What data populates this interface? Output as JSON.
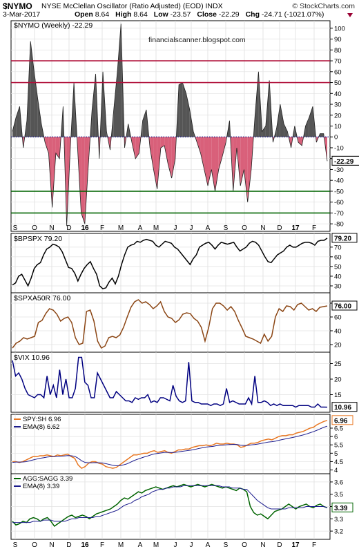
{
  "header": {
    "symbol": "$NYMO",
    "description": "NYSE McClellan Oscillator (Ratio Adjusted) (EOD)  INDX",
    "brand": "© StockCharts.com",
    "date": "3-Mar-2017",
    "open_label": "Open",
    "open_value": "8.64",
    "high_label": "High",
    "high_value": "8.64",
    "low_label": "Low",
    "low_value": "-23.57",
    "close_label": "Close",
    "close_value": "-22.29",
    "chg_label": "Chg",
    "chg_value": "-24.71 (-1021.07%)",
    "chg_color": "#990033"
  },
  "watermark": "financialscanner.blogspot.com",
  "x_axis": {
    "labels": [
      "S",
      "O",
      "N",
      "D",
      "16",
      "F",
      "M",
      "A",
      "M",
      "J",
      "J",
      "A",
      "S",
      "O",
      "N",
      "D",
      "17",
      "F"
    ],
    "bold": [
      "16",
      "17"
    ]
  },
  "chart_data": [
    {
      "type": "area",
      "panel": "nymo",
      "title": "$NYMO (Weekly) -22.29",
      "ylim": [
        -85,
        105
      ],
      "yticks": [
        100,
        90,
        80,
        70,
        60,
        50,
        40,
        30,
        20,
        10,
        0,
        -10,
        -20,
        -30,
        -40,
        -50,
        -60,
        -70,
        -80
      ],
      "reference_lines": [
        {
          "value": 70,
          "color": "#b0103a"
        },
        {
          "value": 50,
          "color": "#b0103a"
        },
        {
          "value": 0,
          "color": "#1a1a8c",
          "style": "dotted"
        },
        {
          "value": -50,
          "color": "#006400"
        },
        {
          "value": -70,
          "color": "#006400"
        }
      ],
      "last_value_label": "-22.29",
      "positive_color": "#555555",
      "negative_color": "#d9607a",
      "values": [
        5,
        18,
        28,
        -10,
        15,
        88,
        60,
        35,
        12,
        -5,
        -15,
        -65,
        -15,
        -20,
        28,
        -82,
        -10,
        50,
        -10,
        -70,
        -80,
        -25,
        25,
        58,
        -20,
        60,
        5,
        -12,
        25,
        60,
        104,
        -10,
        12,
        -5,
        -20,
        -15,
        15,
        25,
        -10,
        -30,
        -48,
        -10,
        -8,
        -25,
        -38,
        -20,
        48,
        50,
        40,
        25,
        5,
        -5,
        -15,
        -30,
        -45,
        -30,
        -50,
        -30,
        -18,
        -5,
        15,
        -50,
        -10,
        -45,
        -30,
        -60,
        -30,
        18,
        60,
        5,
        10,
        52,
        -5,
        8,
        30,
        12,
        5,
        -10,
        10,
        -5,
        -8,
        10,
        18,
        28,
        -5,
        3,
        3,
        -22.29
      ]
    },
    {
      "type": "line",
      "panel": "bpspx",
      "title": "$BPSPX 79.20",
      "ylim": [
        25,
        82
      ],
      "yticks": [
        70,
        60,
        50,
        40,
        30
      ],
      "last_value_label": "79.20",
      "color": "#000000",
      "values": [
        31,
        33,
        40,
        42,
        36,
        30,
        38,
        48,
        52,
        54,
        62,
        68,
        70,
        73,
        72,
        70,
        65,
        57,
        49,
        48,
        43,
        35,
        42,
        48,
        52,
        55,
        48,
        42,
        30,
        27,
        28,
        34,
        38,
        32,
        40,
        52,
        62,
        70,
        72,
        73,
        76,
        75,
        77,
        78,
        77,
        76,
        72,
        70,
        73,
        76,
        75,
        74,
        70,
        68,
        64,
        60,
        56,
        52,
        58,
        62,
        70,
        72,
        74,
        75,
        72,
        68,
        72,
        75,
        74,
        73,
        74,
        75,
        70,
        66,
        68,
        70,
        74,
        76,
        75,
        72,
        66,
        60,
        55,
        54,
        58,
        62,
        64,
        66,
        70,
        72,
        70,
        70,
        72,
        74,
        75,
        75,
        74,
        72,
        76,
        77,
        77,
        79.2
      ]
    },
    {
      "type": "line",
      "panel": "spxa50r",
      "title": "$SPXA50R 76.00",
      "ylim": [
        12,
        92
      ],
      "yticks": [
        80,
        60,
        40,
        20
      ],
      "last_value_label": "76.00",
      "color": "#8b4513",
      "values": [
        15,
        22,
        25,
        30,
        28,
        30,
        32,
        52,
        55,
        65,
        72,
        70,
        64,
        54,
        58,
        60,
        52,
        30,
        20,
        22,
        68,
        70,
        54,
        25,
        15,
        18,
        30,
        32,
        30,
        34,
        45,
        60,
        74,
        82,
        85,
        80,
        82,
        78,
        72,
        76,
        82,
        68,
        60,
        58,
        52,
        56,
        64,
        66,
        65,
        58,
        54,
        45,
        25,
        45,
        72,
        80,
        80,
        76,
        70,
        75,
        68,
        55,
        44,
        32,
        30,
        28,
        25,
        22,
        35,
        25,
        32,
        60,
        72,
        68,
        76,
        75,
        70,
        78,
        80,
        75,
        70,
        72,
        68,
        74,
        75,
        76
      ]
    },
    {
      "type": "line",
      "panel": "vix",
      "title": "$VIX 10.96",
      "ylim": [
        10,
        28
      ],
      "yticks": [
        25,
        20,
        15
      ],
      "last_value_label": "10.96",
      "color": "#000080",
      "values": [
        26,
        21,
        22,
        20,
        17,
        15,
        14.5,
        14,
        15,
        15,
        14,
        21,
        15,
        18,
        14,
        23,
        15,
        20,
        14,
        14,
        17,
        27,
        27,
        19,
        18,
        14,
        14,
        22,
        20,
        18,
        16,
        14,
        14,
        16,
        15,
        14,
        13,
        13,
        12.5,
        14,
        13.5,
        14,
        14,
        15,
        12.5,
        13,
        12.5,
        14,
        14,
        13.5,
        13,
        18,
        14.5,
        13,
        12.5,
        13,
        25.5,
        13,
        12.5,
        12.5,
        12,
        12,
        12,
        11.5,
        12,
        12,
        11.5,
        12,
        17,
        12.5,
        13,
        12.5,
        12,
        12,
        12,
        14,
        12,
        21,
        12.5,
        12.5,
        13,
        12.5,
        11.5,
        12,
        11.5,
        12,
        11.5,
        11.5,
        11.5,
        11.5,
        11,
        11.5,
        11.5,
        11.5,
        11.5,
        11,
        11,
        12,
        11,
        11,
        10.96
      ]
    },
    {
      "type": "line",
      "panel": "spy_sh",
      "series": [
        {
          "name": "SPY:SH",
          "last_value_label": "6.96",
          "color": "#e87722",
          "values": [
            4.5,
            4.5,
            4.45,
            4.5,
            4.6,
            4.7,
            4.8,
            4.8,
            4.85,
            4.85,
            4.9,
            4.85,
            4.8,
            4.9,
            4.85,
            4.9,
            4.95,
            4.8,
            4.7,
            4.3,
            4.1,
            4.2,
            4.4,
            4.5,
            4.5,
            4.4,
            4.35,
            4.2,
            4.15,
            4.1,
            4.15,
            4.3,
            4.45,
            4.6,
            4.75,
            4.9,
            4.9,
            4.95,
            5.0,
            5.0,
            5.1,
            5.15,
            5.05,
            5.1,
            5.15,
            5.05,
            5.0,
            5.1,
            5.2,
            5.2,
            5.25,
            5.25,
            5.35,
            5.4,
            5.45,
            5.45,
            5.5,
            5.45,
            5.5,
            5.6,
            5.55,
            5.55,
            5.6,
            5.55,
            5.55,
            5.5,
            5.35,
            5.4,
            5.5,
            5.6,
            5.6,
            5.65,
            5.75,
            5.8,
            5.85,
            5.8,
            5.9,
            6.0,
            6.05,
            6.05,
            6.1,
            6.1,
            6.2,
            6.25,
            6.3,
            6.4,
            6.5,
            6.55,
            6.7,
            6.8,
            6.9,
            6.96
          ]
        },
        {
          "name": "EMA(8)",
          "last_value_label": "6.62",
          "color": "#1a1a8c",
          "values": [
            4.45,
            4.47,
            4.47,
            4.48,
            4.5,
            4.55,
            4.6,
            4.65,
            4.7,
            4.73,
            4.77,
            4.79,
            4.8,
            4.82,
            4.83,
            4.84,
            4.86,
            4.85,
            4.82,
            4.7,
            4.55,
            4.45,
            4.43,
            4.43,
            4.44,
            4.43,
            4.42,
            4.38,
            4.33,
            4.28,
            4.25,
            4.26,
            4.3,
            4.36,
            4.45,
            4.55,
            4.63,
            4.7,
            4.77,
            4.83,
            4.9,
            4.96,
            4.99,
            5.02,
            5.05,
            5.05,
            5.04,
            5.05,
            5.08,
            5.11,
            5.14,
            5.17,
            5.2,
            5.24,
            5.29,
            5.33,
            5.37,
            5.39,
            5.41,
            5.45,
            5.47,
            5.49,
            5.51,
            5.52,
            5.53,
            5.52,
            5.48,
            5.46,
            5.47,
            5.5,
            5.52,
            5.55,
            5.59,
            5.63,
            5.67,
            5.69,
            5.72,
            5.77,
            5.82,
            5.86,
            5.9,
            5.94,
            5.99,
            6.04,
            6.09,
            6.15,
            6.22,
            6.29,
            6.37,
            6.46,
            6.55,
            6.62
          ]
        }
      ],
      "ylim": [
        3.9,
        7.2
      ],
      "yticks": [
        6.5,
        6.0,
        5.5,
        5.0,
        4.5,
        4.0
      ]
    },
    {
      "type": "line",
      "panel": "agg_sagg",
      "series": [
        {
          "name": "AGG:SAGG",
          "last_value_label": "3.39",
          "color": "#006400",
          "values": [
            3.28,
            3.25,
            3.26,
            3.28,
            3.27,
            3.3,
            3.31,
            3.3,
            3.28,
            3.3,
            3.31,
            3.28,
            3.24,
            3.26,
            3.28,
            3.3,
            3.32,
            3.33,
            3.31,
            3.32,
            3.33,
            3.32,
            3.3,
            3.32,
            3.34,
            3.35,
            3.36,
            3.37,
            3.38,
            3.4,
            3.42,
            3.45,
            3.47,
            3.46,
            3.48,
            3.5,
            3.52,
            3.51,
            3.53,
            3.54,
            3.55,
            3.56,
            3.55,
            3.54,
            3.55,
            3.56,
            3.57,
            3.56,
            3.57,
            3.58,
            3.57,
            3.56,
            3.57,
            3.58,
            3.57,
            3.56,
            3.57,
            3.58,
            3.57,
            3.56,
            3.55,
            3.56,
            3.55,
            3.54,
            3.53,
            3.55,
            3.54,
            3.52,
            3.4,
            3.35,
            3.33,
            3.34,
            3.32,
            3.3,
            3.33,
            3.36,
            3.37,
            3.38,
            3.4,
            3.42,
            3.4,
            3.38,
            3.4,
            3.41,
            3.42,
            3.4,
            3.39,
            3.41,
            3.42,
            3.4,
            3.39
          ]
        },
        {
          "name": "EMA(8)",
          "last_value_label": "3.39",
          "color": "#1a1a8c",
          "values": [
            3.27,
            3.27,
            3.27,
            3.27,
            3.27,
            3.27,
            3.28,
            3.28,
            3.28,
            3.29,
            3.29,
            3.29,
            3.28,
            3.28,
            3.28,
            3.28,
            3.29,
            3.3,
            3.3,
            3.31,
            3.31,
            3.31,
            3.31,
            3.31,
            3.32,
            3.32,
            3.33,
            3.34,
            3.35,
            3.36,
            3.37,
            3.39,
            3.41,
            3.42,
            3.43,
            3.45,
            3.46,
            3.48,
            3.49,
            3.5,
            3.52,
            3.53,
            3.54,
            3.54,
            3.55,
            3.55,
            3.56,
            3.56,
            3.56,
            3.57,
            3.57,
            3.57,
            3.57,
            3.57,
            3.57,
            3.57,
            3.57,
            3.57,
            3.57,
            3.57,
            3.56,
            3.56,
            3.56,
            3.55,
            3.55,
            3.55,
            3.54,
            3.54,
            3.51,
            3.48,
            3.45,
            3.43,
            3.41,
            3.39,
            3.38,
            3.38,
            3.38,
            3.38,
            3.38,
            3.39,
            3.39,
            3.39,
            3.39,
            3.39,
            3.4,
            3.4,
            3.4,
            3.4,
            3.4,
            3.4,
            3.39
          ]
        }
      ],
      "ylim": [
        3.15,
        3.65
      ],
      "yticks": [
        3.6,
        3.5,
        3.4,
        3.3,
        3.2
      ]
    }
  ]
}
